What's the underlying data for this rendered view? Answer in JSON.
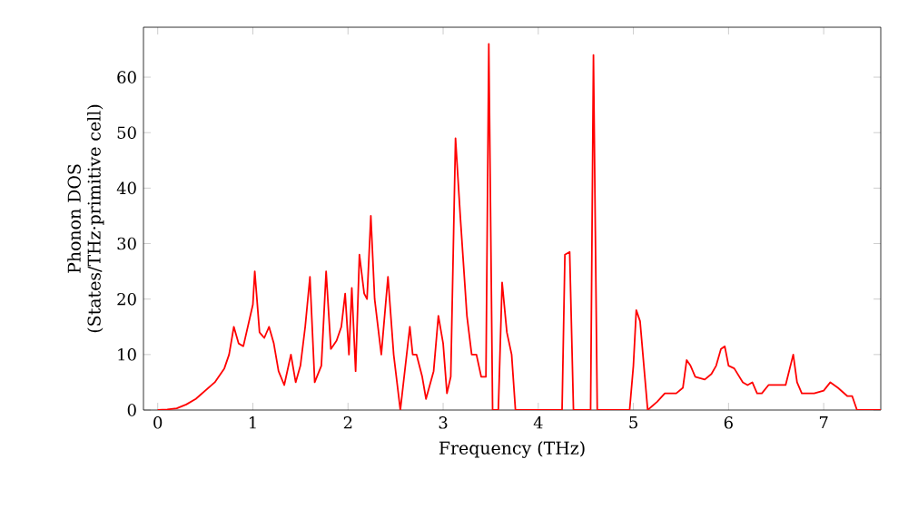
{
  "chart_data": {
    "type": "line",
    "xlabel": "Frequency (THz)",
    "ylabel": "Phonon DOS\n(States/THz·primitive cell)",
    "series": [
      {
        "color": "#ff0000",
        "x": [
          0,
          0.1,
          0.2,
          0.3,
          0.4,
          0.5,
          0.6,
          0.7,
          0.75,
          0.8,
          0.85,
          0.9,
          1.0,
          1.02,
          1.07,
          1.12,
          1.17,
          1.22,
          1.27,
          1.33,
          1.4,
          1.45,
          1.5,
          1.55,
          1.6,
          1.65,
          1.72,
          1.77,
          1.82,
          1.88,
          1.93,
          1.97,
          2.01,
          2.04,
          2.08,
          2.12,
          2.17,
          2.2,
          2.24,
          2.28,
          2.35,
          2.42,
          2.48,
          2.55,
          2.65,
          2.68,
          2.72,
          2.78,
          2.82,
          2.9,
          2.95,
          3.0,
          3.04,
          3.08,
          3.13,
          3.18,
          3.25,
          3.3,
          3.35,
          3.4,
          3.45,
          3.48,
          3.52,
          3.58,
          3.62,
          3.67,
          3.72,
          3.76,
          4.25,
          4.28,
          4.33,
          4.37,
          4.55,
          4.58,
          4.62,
          4.96,
          5.0,
          5.03,
          5.07,
          5.12,
          5.15,
          5.25,
          5.33,
          5.45,
          5.52,
          5.56,
          5.6,
          5.65,
          5.75,
          5.82,
          5.87,
          5.92,
          5.96,
          6.0,
          6.06,
          6.15,
          6.2,
          6.25,
          6.3,
          6.35,
          6.42,
          6.6,
          6.68,
          6.72,
          6.77,
          6.9,
          7.0,
          7.07,
          7.15,
          7.25,
          7.3,
          7.35,
          7.6
        ],
        "values": [
          0,
          0.1,
          0.3,
          1,
          2,
          3.5,
          5,
          7.5,
          10,
          15,
          12,
          11.5,
          19,
          25,
          14,
          13,
          15,
          12,
          7,
          4.5,
          10,
          5,
          8,
          15,
          24,
          5,
          8,
          25,
          11,
          12.5,
          15,
          21,
          10,
          22,
          7,
          28,
          21,
          20,
          35,
          20,
          10,
          24,
          10,
          0,
          15,
          10,
          10,
          6,
          2,
          7,
          17,
          12,
          3,
          6,
          49,
          35,
          17,
          10,
          10,
          6,
          6,
          66,
          0,
          0,
          23,
          14,
          10,
          0,
          0,
          28,
          28.5,
          0,
          0,
          64,
          0,
          0,
          8,
          18,
          16,
          6,
          0,
          1.5,
          3,
          3,
          4,
          9,
          8,
          6,
          5.5,
          6.5,
          8,
          11,
          11.5,
          8,
          7.5,
          5,
          4.5,
          5,
          3,
          3,
          4.5,
          4.5,
          10,
          5,
          3,
          3,
          3.5,
          5,
          4,
          2.5,
          2.5,
          0,
          0
        ]
      }
    ],
    "xlim": [
      -0.15,
      7.6
    ],
    "ylim": [
      0,
      69
    ],
    "xticks": [
      0,
      1,
      2,
      3,
      4,
      5,
      6,
      7
    ],
    "yticks": [
      0,
      10,
      20,
      30,
      40,
      50,
      60
    ],
    "grid": false,
    "marker": "none",
    "line_style": "solid"
  }
}
